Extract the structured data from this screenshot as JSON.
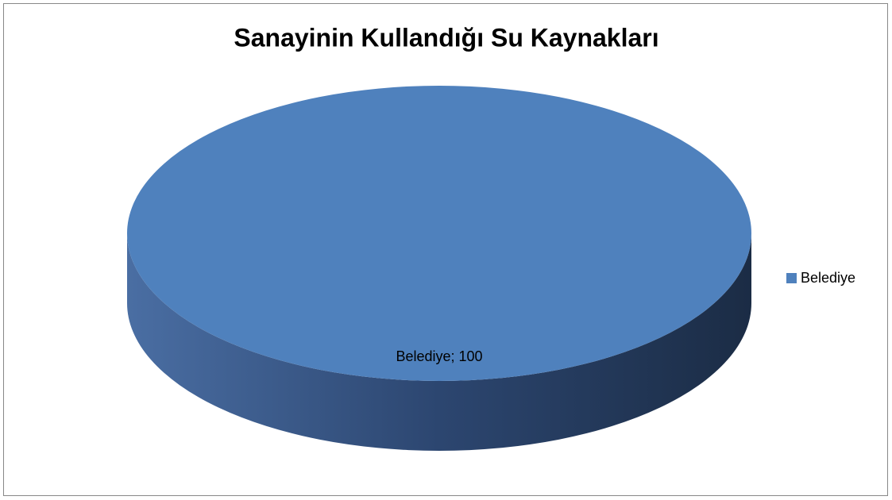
{
  "chart_data": {
    "type": "pie",
    "title": "Sanayinin Kullandığı Su Kaynakları",
    "categories": [
      "Belediye"
    ],
    "values": [
      100
    ],
    "value_labels": [
      "Belediye; 100"
    ],
    "colors": [
      "#4f81bd"
    ],
    "legend": "right",
    "three_d": true
  }
}
